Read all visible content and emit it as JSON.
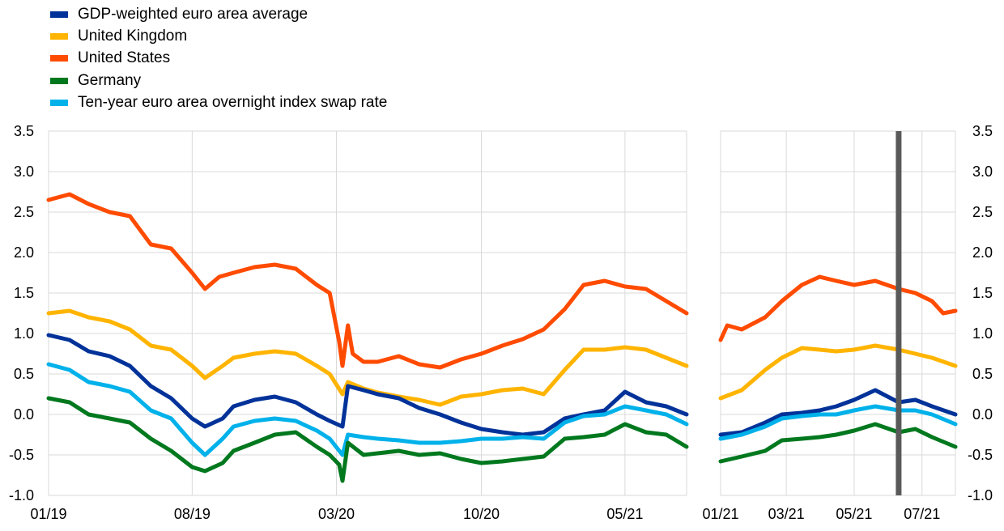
{
  "legend": [
    {
      "label": "GDP-weighted euro area average",
      "color": "#003299"
    },
    {
      "label": "United Kingdom",
      "color": "#FFB400"
    },
    {
      "label": "United States",
      "color": "#FF4B00"
    },
    {
      "label": "Germany",
      "color": "#00781E"
    },
    {
      "label": "Ten-year euro area overnight index swap rate",
      "color": "#00B1EA"
    }
  ],
  "chart_data": [
    {
      "type": "line",
      "panel": "left",
      "x_tick_labels": [
        "01/19",
        "08/19",
        "03/20",
        "10/20",
        "05/21"
      ],
      "x_range": [
        "01/19",
        "07/21"
      ],
      "y_tick_labels": [
        "3.5",
        "3.0",
        "2.5",
        "2.0",
        "1.5",
        "1.0",
        "0.5",
        "0.0",
        "-0.5",
        "-1.0"
      ],
      "ylim": [
        -1.0,
        3.5
      ],
      "grid": true,
      "series": [
        {
          "name": "United States",
          "color": "#FF4B00",
          "x": [
            "2019-01-01",
            "2019-02-01",
            "2019-03-01",
            "2019-04-01",
            "2019-05-01",
            "2019-06-01",
            "2019-07-01",
            "2019-08-01",
            "2019-08-20",
            "2019-09-10",
            "2019-10-01",
            "2019-11-01",
            "2019-12-01",
            "2020-01-01",
            "2020-02-01",
            "2020-02-20",
            "2020-03-05",
            "2020-03-10",
            "2020-03-18",
            "2020-03-25",
            "2020-04-10",
            "2020-05-01",
            "2020-06-01",
            "2020-07-01",
            "2020-08-01",
            "2020-09-01",
            "2020-10-01",
            "2020-11-01",
            "2020-12-01",
            "2021-01-01",
            "2021-02-01",
            "2021-03-01",
            "2021-04-01",
            "2021-05-01",
            "2021-06-01",
            "2021-07-01",
            "2021-07-31"
          ],
          "y": [
            2.65,
            2.72,
            2.6,
            2.5,
            2.45,
            2.1,
            2.05,
            1.75,
            1.55,
            1.7,
            1.75,
            1.82,
            1.85,
            1.8,
            1.6,
            1.5,
            0.9,
            0.6,
            1.1,
            0.75,
            0.65,
            0.65,
            0.72,
            0.62,
            0.58,
            0.68,
            0.75,
            0.85,
            0.93,
            1.05,
            1.3,
            1.6,
            1.65,
            1.58,
            1.55,
            1.4,
            1.25
          ]
        },
        {
          "name": "United Kingdom",
          "color": "#FFB400",
          "x": [
            "2019-01-01",
            "2019-02-01",
            "2019-03-01",
            "2019-04-01",
            "2019-05-01",
            "2019-06-01",
            "2019-07-01",
            "2019-08-01",
            "2019-08-20",
            "2019-09-15",
            "2019-10-01",
            "2019-11-01",
            "2019-12-01",
            "2020-01-01",
            "2020-02-01",
            "2020-02-20",
            "2020-03-10",
            "2020-03-18",
            "2020-04-10",
            "2020-05-01",
            "2020-06-01",
            "2020-07-01",
            "2020-08-01",
            "2020-09-01",
            "2020-10-01",
            "2020-11-01",
            "2020-12-01",
            "2021-01-01",
            "2021-02-01",
            "2021-03-01",
            "2021-04-01",
            "2021-05-01",
            "2021-06-01",
            "2021-07-01",
            "2021-07-31"
          ],
          "y": [
            1.25,
            1.28,
            1.2,
            1.15,
            1.05,
            0.85,
            0.8,
            0.6,
            0.45,
            0.6,
            0.7,
            0.75,
            0.78,
            0.75,
            0.6,
            0.5,
            0.25,
            0.4,
            0.32,
            0.27,
            0.22,
            0.18,
            0.12,
            0.22,
            0.25,
            0.3,
            0.32,
            0.25,
            0.55,
            0.8,
            0.8,
            0.83,
            0.8,
            0.7,
            0.6
          ]
        },
        {
          "name": "GDP-weighted euro area average",
          "color": "#003299",
          "x": [
            "2019-01-01",
            "2019-02-01",
            "2019-03-01",
            "2019-04-01",
            "2019-05-01",
            "2019-06-01",
            "2019-07-01",
            "2019-08-01",
            "2019-08-20",
            "2019-09-15",
            "2019-10-01",
            "2019-11-01",
            "2019-12-01",
            "2020-01-01",
            "2020-02-01",
            "2020-02-20",
            "2020-03-10",
            "2020-03-18",
            "2020-04-10",
            "2020-05-01",
            "2020-06-01",
            "2020-07-01",
            "2020-08-01",
            "2020-09-01",
            "2020-10-01",
            "2020-11-01",
            "2020-12-01",
            "2021-01-01",
            "2021-02-01",
            "2021-03-01",
            "2021-04-01",
            "2021-05-01",
            "2021-06-01",
            "2021-07-01",
            "2021-07-31"
          ],
          "y": [
            0.98,
            0.92,
            0.78,
            0.72,
            0.6,
            0.35,
            0.2,
            -0.05,
            -0.15,
            -0.05,
            0.1,
            0.18,
            0.22,
            0.15,
            0.0,
            -0.08,
            -0.15,
            0.35,
            0.3,
            0.25,
            0.2,
            0.08,
            0.0,
            -0.1,
            -0.18,
            -0.22,
            -0.25,
            -0.22,
            -0.05,
            0.0,
            0.05,
            0.28,
            0.15,
            0.1,
            0.0
          ]
        },
        {
          "name": "Ten-year euro area overnight index swap rate",
          "color": "#00B1EA",
          "x": [
            "2019-01-01",
            "2019-02-01",
            "2019-03-01",
            "2019-04-01",
            "2019-05-01",
            "2019-06-01",
            "2019-07-01",
            "2019-08-01",
            "2019-08-20",
            "2019-09-15",
            "2019-10-01",
            "2019-11-01",
            "2019-12-01",
            "2020-01-01",
            "2020-02-01",
            "2020-02-20",
            "2020-03-10",
            "2020-03-18",
            "2020-04-10",
            "2020-05-01",
            "2020-06-01",
            "2020-07-01",
            "2020-08-01",
            "2020-09-01",
            "2020-10-01",
            "2020-11-01",
            "2020-12-01",
            "2021-01-01",
            "2021-02-01",
            "2021-03-01",
            "2021-04-01",
            "2021-05-01",
            "2021-06-01",
            "2021-07-01",
            "2021-07-31"
          ],
          "y": [
            0.62,
            0.55,
            0.4,
            0.35,
            0.28,
            0.05,
            -0.05,
            -0.35,
            -0.5,
            -0.3,
            -0.15,
            -0.08,
            -0.05,
            -0.08,
            -0.2,
            -0.3,
            -0.5,
            -0.25,
            -0.28,
            -0.3,
            -0.32,
            -0.35,
            -0.35,
            -0.33,
            -0.3,
            -0.3,
            -0.28,
            -0.3,
            -0.1,
            -0.02,
            0.0,
            0.1,
            0.05,
            0.0,
            -0.12
          ]
        },
        {
          "name": "Germany",
          "color": "#00781E",
          "x": [
            "2019-01-01",
            "2019-02-01",
            "2019-03-01",
            "2019-04-01",
            "2019-05-01",
            "2019-06-01",
            "2019-07-01",
            "2019-08-01",
            "2019-08-20",
            "2019-09-15",
            "2019-10-01",
            "2019-11-01",
            "2019-12-01",
            "2020-01-01",
            "2020-02-01",
            "2020-02-20",
            "2020-03-05",
            "2020-03-10",
            "2020-03-18",
            "2020-04-10",
            "2020-05-01",
            "2020-06-01",
            "2020-07-01",
            "2020-08-01",
            "2020-09-01",
            "2020-10-01",
            "2020-11-01",
            "2020-12-01",
            "2021-01-01",
            "2021-02-01",
            "2021-03-01",
            "2021-04-01",
            "2021-05-01",
            "2021-06-01",
            "2021-07-01",
            "2021-07-31"
          ],
          "y": [
            0.2,
            0.15,
            0.0,
            -0.05,
            -0.1,
            -0.3,
            -0.45,
            -0.65,
            -0.7,
            -0.6,
            -0.45,
            -0.35,
            -0.25,
            -0.22,
            -0.4,
            -0.5,
            -0.62,
            -0.82,
            -0.35,
            -0.5,
            -0.48,
            -0.45,
            -0.5,
            -0.48,
            -0.55,
            -0.6,
            -0.58,
            -0.55,
            -0.52,
            -0.3,
            -0.28,
            -0.25,
            -0.12,
            -0.22,
            -0.25,
            -0.4
          ]
        }
      ]
    },
    {
      "type": "line",
      "panel": "right",
      "x_tick_labels": [
        "01/21",
        "03/21",
        "05/21",
        "07/21"
      ],
      "x_range": [
        "01/21",
        "07/21"
      ],
      "y_tick_labels": [
        "3.5",
        "3.0",
        "2.5",
        "2.0",
        "1.5",
        "1.0",
        "0.5",
        "0.0",
        "-0.5",
        "-1.0"
      ],
      "ylim": [
        -1.0,
        3.5
      ],
      "grid": true,
      "vline": "2021-06-10",
      "series": [
        {
          "name": "United States",
          "color": "#FF4B00",
          "x": [
            "2021-01-01",
            "2021-01-07",
            "2021-01-20",
            "2021-02-10",
            "2021-02-25",
            "2021-03-15",
            "2021-03-31",
            "2021-04-15",
            "2021-05-01",
            "2021-05-20",
            "2021-06-10",
            "2021-06-25",
            "2021-07-10",
            "2021-07-20",
            "2021-07-31"
          ],
          "y": [
            0.92,
            1.1,
            1.05,
            1.2,
            1.4,
            1.6,
            1.7,
            1.65,
            1.6,
            1.65,
            1.55,
            1.5,
            1.4,
            1.25,
            1.28
          ]
        },
        {
          "name": "United Kingdom",
          "color": "#FFB400",
          "x": [
            "2021-01-01",
            "2021-01-20",
            "2021-02-10",
            "2021-02-25",
            "2021-03-15",
            "2021-03-31",
            "2021-04-15",
            "2021-05-01",
            "2021-05-20",
            "2021-06-10",
            "2021-06-25",
            "2021-07-10",
            "2021-07-31"
          ],
          "y": [
            0.2,
            0.3,
            0.55,
            0.7,
            0.82,
            0.8,
            0.78,
            0.8,
            0.85,
            0.8,
            0.75,
            0.7,
            0.6
          ]
        },
        {
          "name": "GDP-weighted euro area average",
          "color": "#003299",
          "x": [
            "2021-01-01",
            "2021-01-20",
            "2021-02-10",
            "2021-02-25",
            "2021-03-15",
            "2021-03-31",
            "2021-04-15",
            "2021-05-01",
            "2021-05-20",
            "2021-06-10",
            "2021-06-25",
            "2021-07-10",
            "2021-07-31"
          ],
          "y": [
            -0.25,
            -0.22,
            -0.1,
            0.0,
            0.02,
            0.05,
            0.1,
            0.18,
            0.3,
            0.15,
            0.18,
            0.1,
            0.0
          ]
        },
        {
          "name": "Ten-year euro area overnight index swap rate",
          "color": "#00B1EA",
          "x": [
            "2021-01-01",
            "2021-01-20",
            "2021-02-10",
            "2021-02-25",
            "2021-03-15",
            "2021-03-31",
            "2021-04-15",
            "2021-05-01",
            "2021-05-20",
            "2021-06-10",
            "2021-06-25",
            "2021-07-10",
            "2021-07-31"
          ],
          "y": [
            -0.3,
            -0.25,
            -0.15,
            -0.05,
            -0.02,
            0.0,
            0.0,
            0.05,
            0.1,
            0.05,
            0.05,
            0.0,
            -0.12
          ]
        },
        {
          "name": "Germany",
          "color": "#00781E",
          "x": [
            "2021-01-01",
            "2021-01-20",
            "2021-02-10",
            "2021-02-25",
            "2021-03-15",
            "2021-03-31",
            "2021-04-15",
            "2021-05-01",
            "2021-05-20",
            "2021-06-10",
            "2021-06-25",
            "2021-07-10",
            "2021-07-31"
          ],
          "y": [
            -0.58,
            -0.52,
            -0.45,
            -0.32,
            -0.3,
            -0.28,
            -0.25,
            -0.2,
            -0.12,
            -0.22,
            -0.18,
            -0.28,
            -0.4
          ]
        }
      ]
    }
  ]
}
